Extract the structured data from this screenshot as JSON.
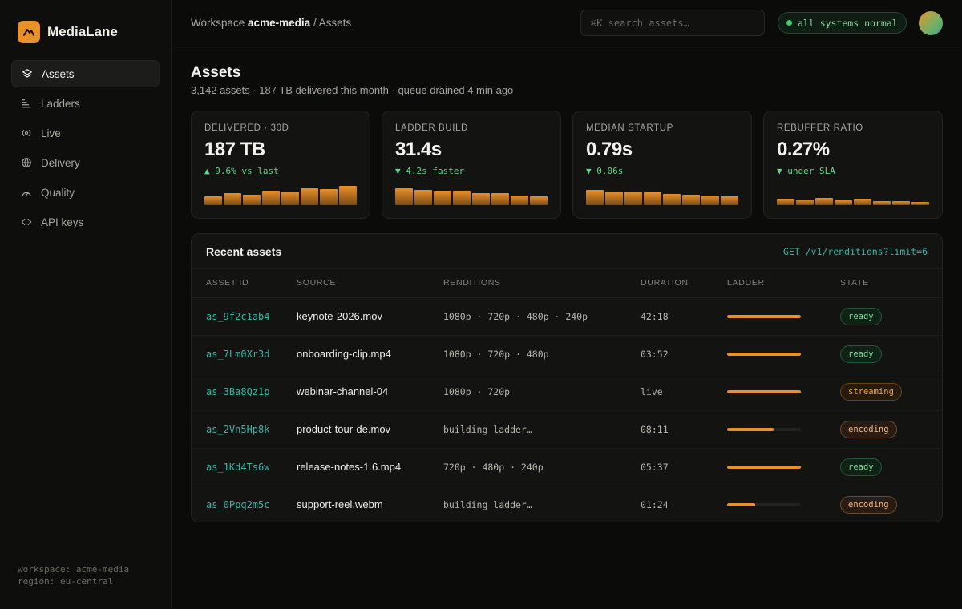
{
  "brand": {
    "name": "MediaLane",
    "accent": "#e8902a"
  },
  "sidebar": {
    "items": [
      {
        "label": "Assets",
        "icon": "layers-icon",
        "active": true
      },
      {
        "label": "Ladders",
        "icon": "ladder-icon",
        "active": false
      },
      {
        "label": "Live",
        "icon": "broadcast-icon",
        "active": false
      },
      {
        "label": "Delivery",
        "icon": "globe-icon",
        "active": false
      },
      {
        "label": "Quality",
        "icon": "gauge-icon",
        "active": false
      },
      {
        "label": "API keys",
        "icon": "code-icon",
        "active": false
      }
    ],
    "footer": {
      "workspace": "workspace: acme-media",
      "region": "region: eu-central"
    }
  },
  "header": {
    "breadcrumb": {
      "prefix": "Workspace",
      "workspace": "acme-media",
      "sep": " / ",
      "page": "Assets"
    },
    "search": {
      "placeholder": "⌘K search assets…",
      "value": ""
    },
    "status": {
      "label": "all systems normal",
      "color": "#3fcf73"
    }
  },
  "main": {
    "title": "Assets",
    "subtitle": "3,142 assets · 187 TB delivered this month · queue drained 4 min ago"
  },
  "stats": [
    {
      "label": "DELIVERED · 30D",
      "value": "187 TB",
      "delta": "▲ 9.6% vs last",
      "bars": [
        0.42,
        0.58,
        0.5,
        0.7,
        0.64,
        0.82,
        0.78,
        0.92
      ]
    },
    {
      "label": "LADDER BUILD",
      "value": "31.4s",
      "delta": "▼ 4.2s faster",
      "bars": [
        0.8,
        0.74,
        0.7,
        0.68,
        0.58,
        0.58,
        0.46,
        0.42
      ]
    },
    {
      "label": "MEDIAN STARTUP",
      "value": "0.79s",
      "delta": "▼ 0.06s",
      "bars": [
        0.72,
        0.66,
        0.64,
        0.6,
        0.54,
        0.5,
        0.46,
        0.42
      ]
    },
    {
      "label": "REBUFFER RATIO",
      "value": "0.27%",
      "delta": "▼ under SLA",
      "bars": [
        0.3,
        0.26,
        0.34,
        0.22,
        0.3,
        0.18,
        0.18,
        0.14
      ]
    }
  ],
  "recent": {
    "title": "Recent assets",
    "api": "GET /v1/renditions?limit=6",
    "columns": [
      "ASSET ID",
      "SOURCE",
      "RENDITIONS",
      "DURATION",
      "LADDER",
      "STATE"
    ],
    "rows": [
      {
        "id": "as_9f2c1ab4",
        "source": "keynote-2026.mov",
        "renditions": "1080p · 720p · 480p · 240p",
        "duration": "42:18",
        "ladder": 1.0,
        "state": "ready"
      },
      {
        "id": "as_7Lm0Xr3d",
        "source": "onboarding-clip.mp4",
        "renditions": "1080p · 720p · 480p",
        "duration": "03:52",
        "ladder": 1.0,
        "state": "ready"
      },
      {
        "id": "as_3Ba8Qz1p",
        "source": "webinar-channel-04",
        "renditions": "1080p · 720p",
        "duration": "live",
        "ladder": 1.0,
        "state": "streaming"
      },
      {
        "id": "as_2Vn5Hp8k",
        "source": "product-tour-de.mov",
        "renditions": "building ladder…",
        "duration": "08:11",
        "ladder": 0.63,
        "state": "encoding"
      },
      {
        "id": "as_1Kd4Ts6w",
        "source": "release-notes-1.6.mp4",
        "renditions": "720p · 480p · 240p",
        "duration": "05:37",
        "ladder": 1.0,
        "state": "ready"
      },
      {
        "id": "as_0Ppq2m5c",
        "source": "support-reel.webm",
        "renditions": "building ladder…",
        "duration": "01:24",
        "ladder": 0.38,
        "state": "encoding"
      }
    ]
  }
}
